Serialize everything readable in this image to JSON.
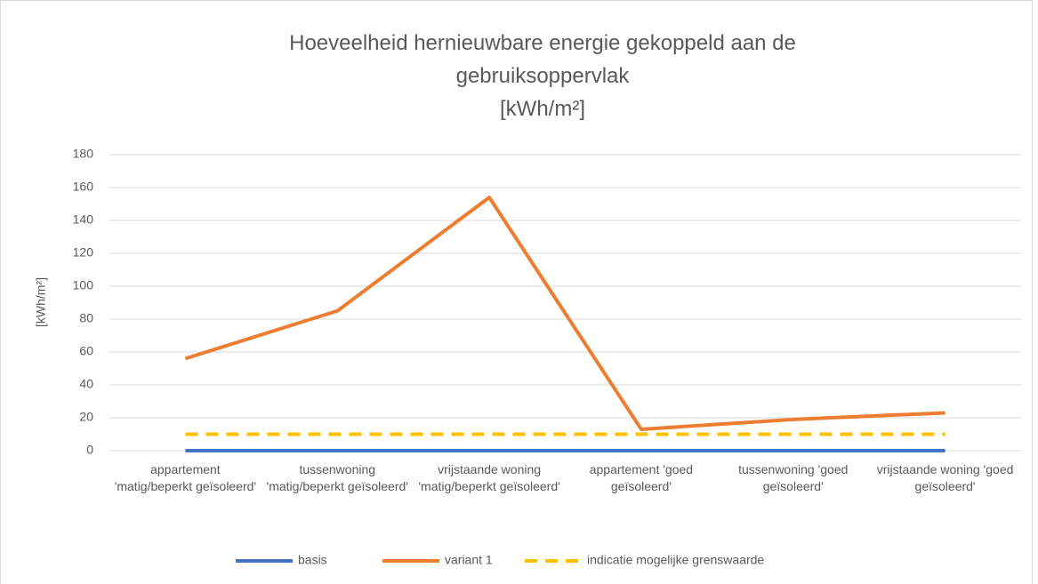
{
  "chart_data": {
    "type": "line",
    "title": "Hoeveelheid hernieuwbare energie gekoppeld aan de gebruiksoppervlak",
    "subtitle": "[kWh/m²]",
    "y_label": "[kWh/m²]",
    "categories": [
      "appartement 'matig/beperkt geïsoleerd'",
      "tussenwoning 'matig/beperkt geïsoleerd'",
      "vrijstaande woning 'matig/beperkt geïsoleerd'",
      "appartement 'goed geïsoleerd'",
      "tussenwoning 'goed geïsoleerd'",
      "vrijstaande woning 'goed geïsoleerd'"
    ],
    "series": [
      {
        "name": "basis",
        "color": "#4472c4",
        "dashed": false,
        "values": [
          0,
          0,
          0,
          0,
          0,
          0
        ]
      },
      {
        "name": "variant 1",
        "color": "#ed7d31",
        "dashed": false,
        "values": [
          56,
          85,
          154,
          13,
          19,
          23
        ]
      },
      {
        "name": "indicatie mogelijke grenswaarde",
        "color": "#ffc000",
        "dashed": true,
        "values": [
          10,
          10,
          10,
          10,
          10,
          10
        ]
      }
    ],
    "ylim": [
      0,
      180
    ],
    "yticks": [
      0,
      20,
      40,
      60,
      80,
      100,
      120,
      140,
      160,
      180
    ],
    "grid": true,
    "legend": "bottom"
  }
}
